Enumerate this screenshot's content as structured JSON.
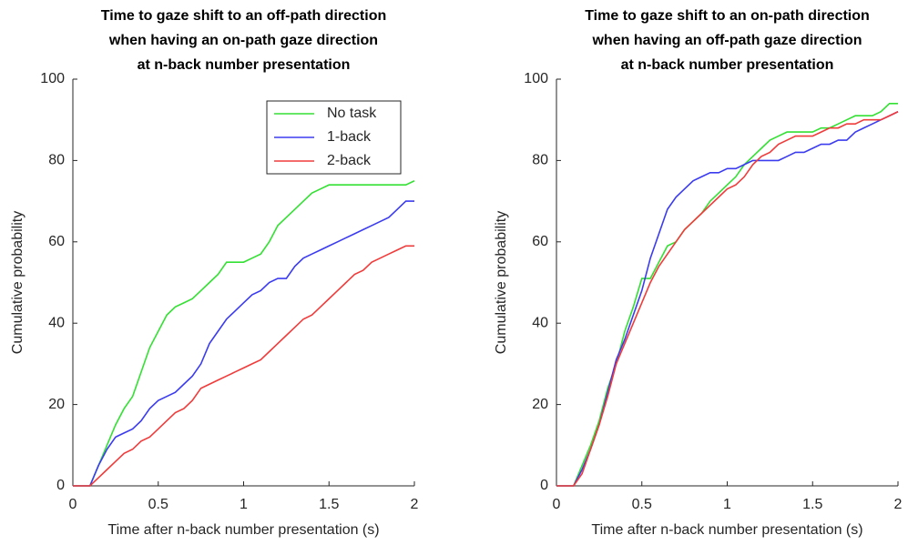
{
  "chart_data": [
    {
      "type": "line",
      "title": [
        "Time to gaze shift to an off-path direction",
        "when having an on-path gaze direction",
        "at n-back number presentation"
      ],
      "xlabel": "Time after n-back number presentation (s)",
      "ylabel": "Cumulative probability",
      "xlim": [
        0,
        2
      ],
      "xticks": [
        0,
        0.5,
        1,
        1.5,
        2
      ],
      "ylim": [
        0,
        100
      ],
      "yticks": [
        0,
        20,
        40,
        60,
        80,
        100
      ],
      "legend": "upper right",
      "x": [
        0,
        0.1,
        0.15,
        0.2,
        0.25,
        0.3,
        0.35,
        0.4,
        0.45,
        0.5,
        0.55,
        0.6,
        0.65,
        0.7,
        0.75,
        0.8,
        0.85,
        0.9,
        0.95,
        1.0,
        1.05,
        1.1,
        1.15,
        1.2,
        1.25,
        1.3,
        1.35,
        1.4,
        1.45,
        1.5,
        1.55,
        1.6,
        1.65,
        1.7,
        1.75,
        1.8,
        1.85,
        1.9,
        1.95,
        2.0
      ],
      "series": [
        {
          "name": "No task",
          "color": "#33e033",
          "values": [
            0,
            0,
            5,
            10,
            15,
            19,
            22,
            28,
            34,
            38,
            42,
            44,
            45,
            46,
            48,
            50,
            52,
            55,
            55,
            55,
            56,
            57,
            60,
            64,
            66,
            68,
            70,
            72,
            73,
            74,
            74,
            74,
            74,
            74,
            74,
            74,
            74,
            74,
            74,
            75
          ]
        },
        {
          "name": "1-back",
          "color": "#3b3bf0",
          "values": [
            0,
            0,
            5,
            9,
            12,
            13,
            14,
            16,
            19,
            21,
            22,
            23,
            25,
            27,
            30,
            35,
            38,
            41,
            43,
            45,
            47,
            48,
            50,
            51,
            51,
            54,
            56,
            57,
            58,
            59,
            60,
            61,
            62,
            63,
            64,
            65,
            66,
            68,
            70,
            70
          ]
        },
        {
          "name": "2-back",
          "color": "#f03b3b",
          "values": [
            0,
            0,
            2,
            4,
            6,
            8,
            9,
            11,
            12,
            14,
            16,
            18,
            19,
            21,
            24,
            25,
            26,
            27,
            28,
            29,
            30,
            31,
            33,
            35,
            37,
            39,
            41,
            42,
            44,
            46,
            48,
            50,
            52,
            53,
            55,
            56,
            57,
            58,
            59,
            59
          ]
        }
      ]
    },
    {
      "type": "line",
      "title": [
        "Time to gaze shift to an on-path direction",
        "when having an off-path gaze direction",
        "at n-back number presentation"
      ],
      "xlabel": "Time after n-back number presentation (s)",
      "ylabel": "Cumulative probability",
      "xlim": [
        0,
        2
      ],
      "xticks": [
        0,
        0.5,
        1,
        1.5,
        2
      ],
      "ylim": [
        0,
        100
      ],
      "yticks": [
        0,
        20,
        40,
        60,
        80,
        100
      ],
      "x": [
        0,
        0.1,
        0.15,
        0.2,
        0.25,
        0.3,
        0.35,
        0.4,
        0.45,
        0.5,
        0.55,
        0.6,
        0.65,
        0.7,
        0.75,
        0.8,
        0.85,
        0.9,
        0.95,
        1.0,
        1.05,
        1.1,
        1.15,
        1.2,
        1.25,
        1.3,
        1.35,
        1.4,
        1.45,
        1.5,
        1.55,
        1.6,
        1.65,
        1.7,
        1.75,
        1.8,
        1.85,
        1.9,
        1.95,
        2.0
      ],
      "series": [
        {
          "color": "#33e033",
          "values": [
            0,
            0,
            5,
            10,
            16,
            24,
            30,
            38,
            44,
            51,
            51,
            55,
            59,
            60,
            63,
            65,
            67,
            70,
            72,
            74,
            76,
            79,
            81,
            83,
            85,
            86,
            87,
            87,
            87,
            87,
            88,
            88,
            89,
            90,
            91,
            91,
            91,
            92,
            94,
            94
          ]
        },
        {
          "color": "#3b3bf0",
          "values": [
            0,
            0,
            4,
            9,
            15,
            23,
            31,
            36,
            42,
            48,
            56,
            62,
            68,
            71,
            73,
            75,
            76,
            77,
            77,
            78,
            78,
            79,
            80,
            80,
            80,
            80,
            81,
            82,
            82,
            83,
            84,
            84,
            85,
            85,
            87,
            88,
            89,
            90,
            91,
            92
          ]
        },
        {
          "color": "#f03b3b",
          "values": [
            0,
            0,
            3,
            9,
            15,
            22,
            30,
            35,
            40,
            45,
            50,
            54,
            57,
            60,
            63,
            65,
            67,
            69,
            71,
            73,
            74,
            76,
            79,
            81,
            82,
            84,
            85,
            86,
            86,
            86,
            87,
            88,
            88,
            89,
            89,
            90,
            90,
            90,
            91,
            92
          ]
        }
      ]
    }
  ]
}
